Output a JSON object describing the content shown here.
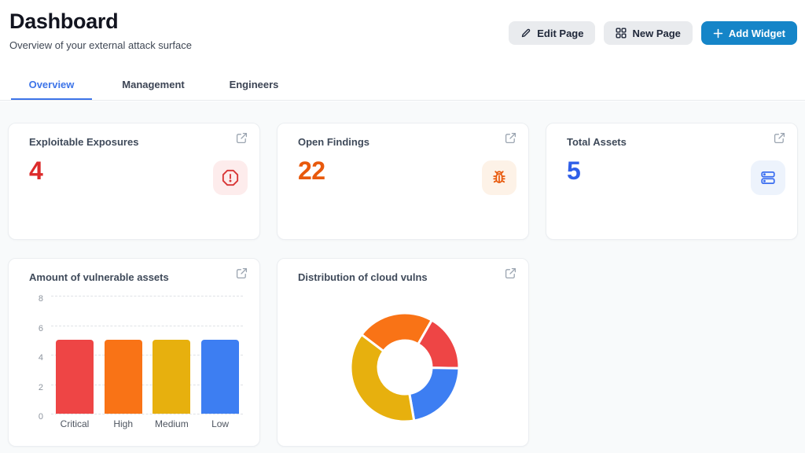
{
  "page": {
    "title": "Dashboard",
    "subtitle": "Overview of your external attack surface"
  },
  "toolbar": {
    "edit_page_label": "Edit Page",
    "new_page_label": "New Page",
    "add_widget_label": "Add Widget",
    "add_widget_color": "#1585c8"
  },
  "tabs": [
    {
      "label": "Overview",
      "active": true
    },
    {
      "label": "Management",
      "active": false
    },
    {
      "label": "Engineers",
      "active": false
    }
  ],
  "stat_cards": [
    {
      "title": "Exploitable Exposures",
      "value": "4",
      "value_color": "#dc2b2b",
      "icon": "alert-octagon-icon",
      "icon_color": "#d83434",
      "icon_bg": "#fdecec"
    },
    {
      "title": "Open Findings",
      "value": "22",
      "value_color": "#e8590c",
      "icon": "bug-icon",
      "icon_color": "#e8590c",
      "icon_bg": "#fdf2e7"
    },
    {
      "title": "Total Assets",
      "value": "5",
      "value_color": "#2f5fe8",
      "icon": "server-icon",
      "icon_color": "#3b6ef0",
      "icon_bg": "#edf3fc"
    }
  ],
  "chart_data": [
    {
      "type": "bar",
      "title": "Amount of vulnerable assets",
      "categories": [
        "Critical",
        "High",
        "Medium",
        "Low"
      ],
      "values": [
        5,
        5,
        5,
        5
      ],
      "colors": [
        "#ee4545",
        "#f97316",
        "#e7b00e",
        "#3d7ef2"
      ],
      "xlabel": "",
      "ylabel": "",
      "ylim": [
        0,
        8
      ],
      "y_ticks": [
        0,
        2,
        4,
        6,
        8
      ],
      "grid": "horizontal-dashed",
      "legend": "none"
    },
    {
      "type": "pie",
      "title": "Distribution of cloud vulns",
      "donut": true,
      "rotation_deg": -53,
      "legend": "none",
      "segments": [
        {
          "name": "orange",
          "share_pct": 23,
          "color": "#f97316"
        },
        {
          "name": "red",
          "share_pct": 17,
          "color": "#ee4545"
        },
        {
          "name": "blue",
          "share_pct": 22,
          "color": "#3d7ef2"
        },
        {
          "name": "yellow",
          "share_pct": 38,
          "color": "#e7b00e"
        }
      ]
    }
  ]
}
